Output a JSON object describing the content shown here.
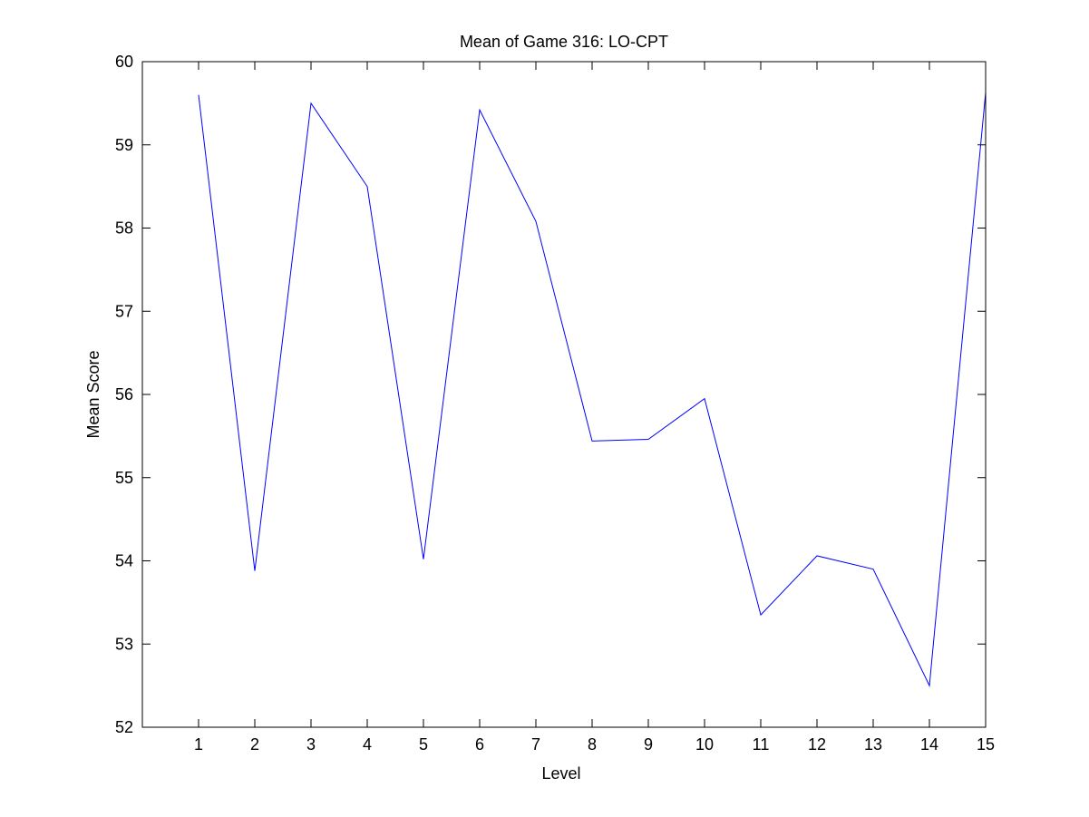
{
  "chart_data": {
    "type": "line",
    "title": "Mean of Game 316: LO-CPT",
    "xlabel": "Level",
    "ylabel": "Mean Score",
    "xlim": [
      0,
      15
    ],
    "ylim": [
      52,
      60
    ],
    "xticks": [
      1,
      2,
      3,
      4,
      5,
      6,
      7,
      8,
      9,
      10,
      11,
      12,
      13,
      14,
      15
    ],
    "yticks": [
      52,
      53,
      54,
      55,
      56,
      57,
      58,
      59,
      60
    ],
    "x": [
      1,
      2,
      3,
      4,
      5,
      6,
      7,
      8,
      9,
      10,
      11,
      12,
      13,
      14,
      15
    ],
    "series": [
      {
        "values": [
          59.6,
          53.88,
          59.5,
          58.5,
          54.02,
          59.42,
          58.08,
          55.44,
          55.46,
          55.95,
          53.35,
          54.06,
          53.9,
          52.5,
          59.63
        ],
        "color": "#0000ff"
      }
    ],
    "grid": false,
    "legend": "none",
    "axis_color": "#000000"
  }
}
